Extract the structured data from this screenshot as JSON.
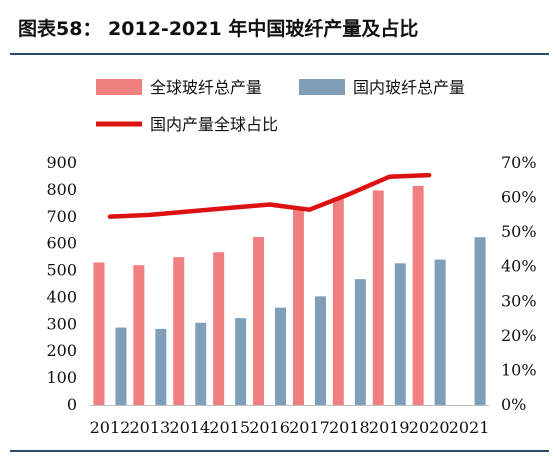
{
  "title": "图表58：  2012-2021 年中国玻纤产量及占比",
  "chart_data": {
    "type": "bar",
    "categories": [
      "2012",
      "2013",
      "2014",
      "2015",
      "2016",
      "2017",
      "2018",
      "2019",
      "2020",
      "2021"
    ],
    "series": [
      {
        "name": "全球玻纤总产量",
        "kind": "bar",
        "color": "#f08080",
        "values": [
          530,
          520,
          550,
          568,
          625,
          730,
          770,
          798,
          815,
          null
        ]
      },
      {
        "name": "国内玻纤总产量",
        "kind": "bar",
        "color": "#7f9fb8",
        "values": [
          288,
          283,
          306,
          323,
          362,
          404,
          468,
          527,
          541,
          624
        ]
      },
      {
        "name": "国内产量全球占比",
        "kind": "line",
        "axis": "right",
        "color": "#dd1111",
        "values": [
          0.545,
          0.55,
          0.56,
          0.57,
          0.58,
          0.565,
          0.61,
          0.66,
          0.665,
          null
        ]
      }
    ],
    "y_left": {
      "min": 0,
      "max": 900,
      "ticks": [
        "0",
        "100",
        "200",
        "300",
        "400",
        "500",
        "600",
        "700",
        "800",
        "900"
      ]
    },
    "y_right": {
      "min": 0,
      "max": 0.7,
      "ticks": [
        "0%",
        "10%",
        "20%",
        "30%",
        "40%",
        "50%",
        "60%",
        "70%"
      ]
    },
    "legend_position": "top"
  }
}
